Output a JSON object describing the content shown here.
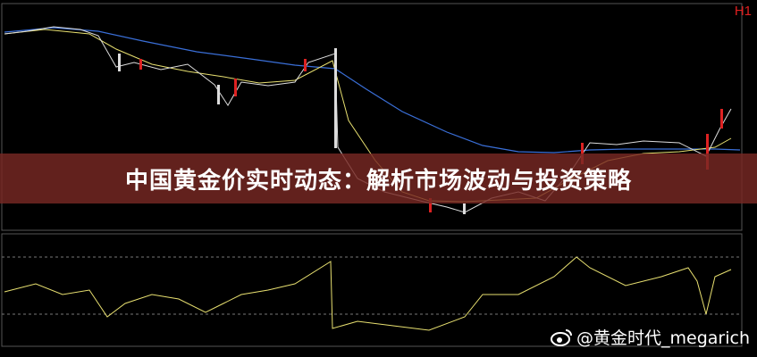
{
  "timeframe": "H1",
  "title": "中国黄金价实时动态：解析市场波动与投资策略",
  "watermark": "@黄金时代_megarich"
}
